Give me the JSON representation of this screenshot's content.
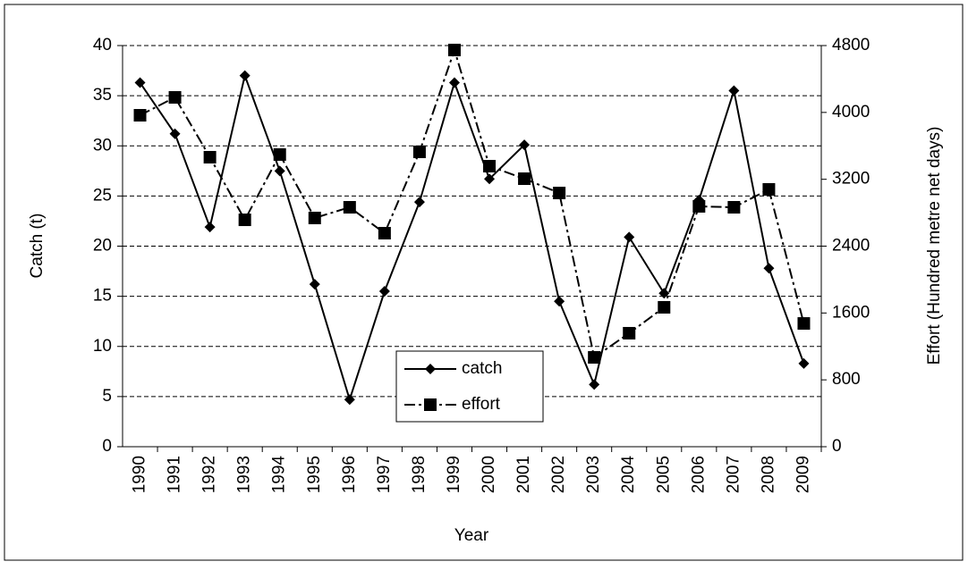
{
  "chart_data": {
    "type": "line",
    "x_label": "Year",
    "y_label": "Catch (t)",
    "y2_label": "Effort (Hundred metre net days)",
    "categories": [
      "1990",
      "1991",
      "1992",
      "1993",
      "1994",
      "1995",
      "1996",
      "1997",
      "1998",
      "1999",
      "2000",
      "2001",
      "2002",
      "2003",
      "2004",
      "2005",
      "2006",
      "2007",
      "2008",
      "2009"
    ],
    "series": [
      {
        "name": "catch",
        "color": "#000000",
        "marker": "diamond",
        "values": [
          36.3,
          31.2,
          21.9,
          37.0,
          27.5,
          16.2,
          4.7,
          15.5,
          24.4,
          36.3,
          26.7,
          30.1,
          14.5,
          6.2,
          20.9,
          15.3,
          24.6,
          35.5,
          17.8,
          8.3
        ]
      },
      {
        "name": "effort",
        "color": "#000000",
        "marker": "square",
        "axis": "y2",
        "values": [
          3966,
          4180,
          3464,
          2715,
          3496,
          2737,
          2865,
          2555,
          3528,
          4747,
          3357,
          3207,
          3036,
          1069,
          1358,
          1668,
          2876,
          2865,
          3079,
          1475
        ]
      }
    ],
    "ylim": [
      0,
      40
    ],
    "yticks": [
      0,
      5,
      10,
      15,
      20,
      25,
      30,
      35,
      40
    ],
    "y2lim": [
      0,
      4800
    ],
    "y2ticks": [
      0,
      800,
      1600,
      2400,
      3200,
      4000,
      4800
    ],
    "grid": true
  }
}
